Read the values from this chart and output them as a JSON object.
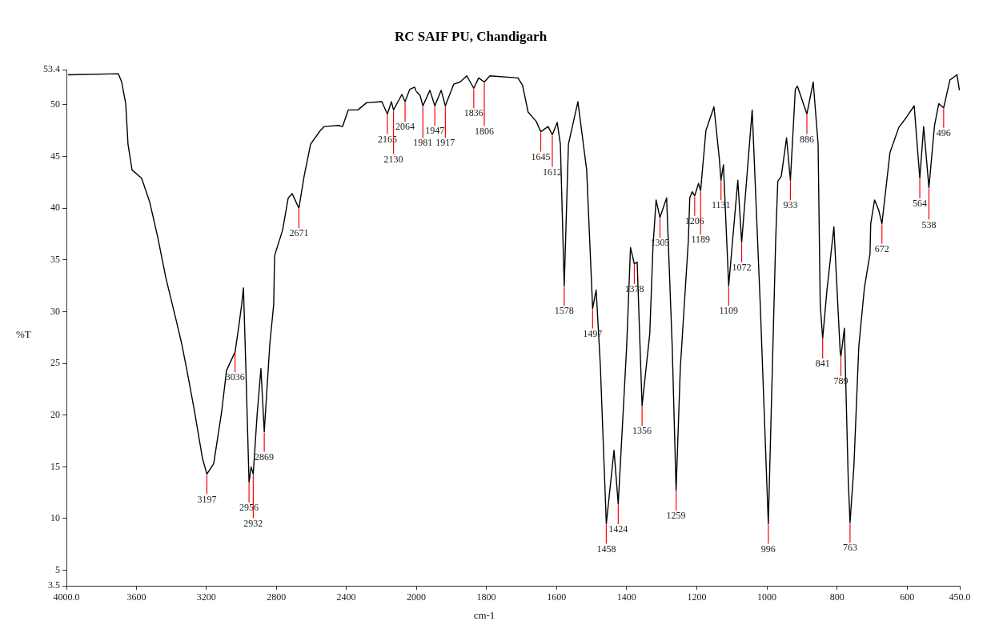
{
  "chart_data": [
    {
      "type": "line",
      "ylabel": "%T",
      "xlim": [
        4000,
        2000
      ],
      "xticks": [
        {
          "value": 4000,
          "label": "4000.0"
        },
        3600,
        3200,
        2800,
        2400,
        2000
      ],
      "ylim": [
        3.5,
        53.4
      ],
      "yticks": [
        3.5,
        5,
        10,
        15,
        20,
        25,
        30,
        35,
        40,
        45,
        50,
        53.4
      ],
      "grid": false,
      "legend": false,
      "marker": "none",
      "line_style": "solid",
      "series": [
        {
          "color": "#000000",
          "x": [
            3991,
            3703,
            3684,
            3661,
            3648,
            3625,
            3570,
            3524,
            3478,
            3432,
            3373,
            3341,
            3313,
            3268,
            3222,
            3197,
            3158,
            3112,
            3085,
            3036,
            3016,
            2998,
            2988,
            2975,
            2956,
            2944,
            2932,
            2910,
            2888,
            2869,
            2837,
            2815,
            2810,
            2764,
            2732,
            2709,
            2671,
            2641,
            2604,
            2549,
            2526,
            2444,
            2421,
            2389,
            2334,
            2284,
            2197,
            2165,
            2142,
            2130,
            2082,
            2064,
            2037,
            2009,
            2000
          ],
          "values": [
            52.9,
            53.0,
            52.2,
            50.1,
            46.2,
            43.7,
            42.9,
            40.6,
            37.2,
            33.3,
            29.2,
            26.9,
            24.5,
            20.4,
            15.8,
            14.3,
            15.3,
            20.4,
            24.3,
            26.1,
            28.4,
            30.7,
            32.3,
            25.0,
            13.5,
            15.0,
            14.3,
            20.0,
            24.5,
            18.4,
            26.9,
            30.7,
            35.4,
            37.9,
            41.0,
            41.4,
            40.0,
            43.1,
            46.2,
            47.5,
            47.9,
            48.0,
            47.9,
            49.5,
            49.5,
            50.2,
            50.3,
            49.1,
            50.3,
            49.5,
            51.0,
            50.3,
            51.5,
            51.7,
            51.3
          ]
        }
      ],
      "annotations": [
        {
          "text": "3197",
          "x": 3197,
          "y": 14.3
        },
        {
          "text": "3036",
          "x": 3036,
          "y": 26.1
        },
        {
          "text": "2956",
          "x": 2956,
          "y": 13.5
        },
        {
          "text": "2932",
          "x": 2932,
          "y": 14.3
        },
        {
          "text": "2869",
          "x": 2869,
          "y": 18.4
        },
        {
          "text": "2671",
          "x": 2671,
          "y": 40.0
        },
        {
          "text": "2165",
          "x": 2165,
          "y": 49.1
        },
        {
          "text": "2130",
          "x": 2130,
          "y": 49.5
        },
        {
          "text": "2064",
          "x": 2064,
          "y": 50.3
        }
      ]
    },
    {
      "type": "line",
      "title": "RC SAIF PU, Chandigarh",
      "xlabel": "cm-1",
      "xlim": [
        2000,
        450
      ],
      "xticks": [
        1800,
        1600,
        1400,
        1200,
        1000,
        800,
        600,
        {
          "value": 450,
          "label": "450.0"
        }
      ],
      "ylim": [
        3.5,
        53.4
      ],
      "tick_labels": "x",
      "grid": false,
      "legend": false,
      "marker": "none",
      "line_style": "solid",
      "series": [
        {
          "color": "#000000",
          "x": [
            2000,
            1989,
            1981,
            1961,
            1947,
            1929,
            1917,
            1893,
            1875,
            1856,
            1836,
            1822,
            1806,
            1790,
            1710,
            1697,
            1681,
            1658,
            1645,
            1624,
            1612,
            1598,
            1589,
            1578,
            1566,
            1539,
            1514,
            1497,
            1487,
            1475,
            1458,
            1436,
            1424,
            1400,
            1389,
            1378,
            1370,
            1356,
            1334,
            1325,
            1316,
            1305,
            1286,
            1270,
            1259,
            1247,
            1224,
            1220,
            1213,
            1206,
            1195,
            1189,
            1174,
            1151,
            1136,
            1131,
            1124,
            1109,
            1083,
            1072,
            1042,
            1019,
            996,
            975,
            969,
            959,
            944,
            933,
            919,
            913,
            886,
            868,
            854,
            848,
            841,
            829,
            809,
            791,
            789,
            779,
            775,
            768,
            763,
            752,
            738,
            722,
            706,
            704,
            693,
            681,
            672,
            649,
            624,
            602,
            580,
            564,
            553,
            538,
            522,
            510,
            496,
            478,
            458,
            451
          ],
          "values": [
            51.3,
            50.9,
            49.9,
            51.4,
            49.9,
            51.4,
            49.9,
            52.0,
            52.2,
            52.8,
            51.6,
            52.6,
            52.2,
            52.8,
            52.6,
            51.9,
            49.3,
            48.4,
            47.4,
            47.9,
            47.1,
            48.3,
            46.2,
            32.5,
            46.2,
            50.3,
            43.7,
            30.3,
            32.1,
            24.8,
            9.5,
            16.6,
            11.4,
            26.6,
            36.2,
            34.6,
            34.8,
            20.9,
            27.9,
            36.2,
            40.8,
            39.1,
            41.0,
            26.6,
            12.7,
            24.5,
            36.9,
            41.0,
            41.6,
            41.2,
            42.4,
            41.7,
            47.5,
            49.8,
            44.9,
            42.7,
            44.2,
            32.5,
            42.7,
            36.7,
            49.5,
            30.7,
            9.5,
            36.9,
            42.6,
            43.1,
            46.8,
            42.7,
            51.5,
            51.8,
            49.1,
            52.2,
            46.2,
            30.7,
            27.4,
            32.0,
            38.2,
            26.1,
            25.7,
            28.4,
            23.0,
            13.7,
            9.6,
            15.0,
            26.6,
            32.3,
            35.6,
            38.5,
            40.8,
            39.8,
            38.5,
            45.4,
            47.8,
            48.8,
            49.9,
            42.9,
            47.9,
            42.0,
            48.0,
            50.1,
            49.7,
            52.4,
            52.9,
            51.4
          ]
        }
      ],
      "annotations": [
        {
          "text": "1981",
          "x": 1981,
          "y": 49.9
        },
        {
          "text": "1947",
          "x": 1947,
          "y": 49.9
        },
        {
          "text": "1917",
          "x": 1917,
          "y": 49.9
        },
        {
          "text": "1836",
          "x": 1836,
          "y": 51.6
        },
        {
          "text": "1806",
          "x": 1806,
          "y": 52.2
        },
        {
          "text": "1645",
          "x": 1645,
          "y": 47.4
        },
        {
          "text": "1612",
          "x": 1612,
          "y": 47.1
        },
        {
          "text": "1578",
          "x": 1578,
          "y": 32.5
        },
        {
          "text": "1497",
          "x": 1497,
          "y": 30.3
        },
        {
          "text": "1458",
          "x": 1458,
          "y": 9.5
        },
        {
          "text": "1424",
          "x": 1424,
          "y": 11.4
        },
        {
          "text": "1378",
          "x": 1378,
          "y": 34.6
        },
        {
          "text": "1356",
          "x": 1356,
          "y": 20.9
        },
        {
          "text": "1305",
          "x": 1305,
          "y": 39.1
        },
        {
          "text": "1259",
          "x": 1259,
          "y": 12.7
        },
        {
          "text": "1206",
          "x": 1206,
          "y": 41.2
        },
        {
          "text": "1189",
          "x": 1189,
          "y": 41.7
        },
        {
          "text": "1131",
          "x": 1131,
          "y": 42.7
        },
        {
          "text": "1109",
          "x": 1109,
          "y": 32.5
        },
        {
          "text": "1072",
          "x": 1072,
          "y": 36.7
        },
        {
          "text": "996",
          "x": 996,
          "y": 9.5
        },
        {
          "text": "933",
          "x": 933,
          "y": 42.7
        },
        {
          "text": "886",
          "x": 886,
          "y": 49.1
        },
        {
          "text": "841",
          "x": 841,
          "y": 27.4
        },
        {
          "text": "789",
          "x": 789,
          "y": 25.7
        },
        {
          "text": "763",
          "x": 763,
          "y": 9.6
        },
        {
          "text": "672",
          "x": 672,
          "y": 38.5
        },
        {
          "text": "564",
          "x": 564,
          "y": 42.9
        },
        {
          "text": "538",
          "x": 538,
          "y": 42.0
        },
        {
          "text": "496",
          "x": 496,
          "y": 49.7
        }
      ]
    }
  ]
}
